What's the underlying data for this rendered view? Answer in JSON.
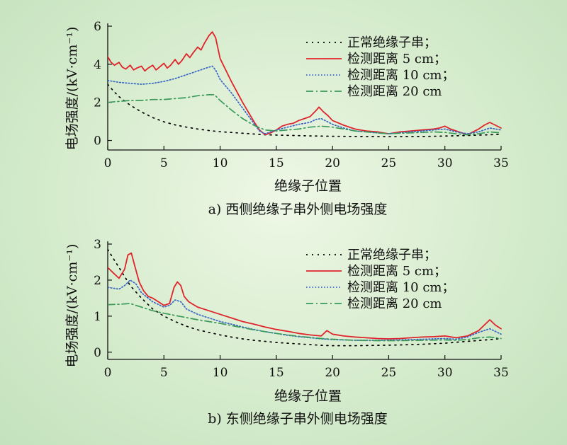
{
  "chart_data": [
    {
      "type": "line",
      "caption": "a) 西侧绝缘子串外侧电场强度",
      "xlabel": "绝缘子位置",
      "ylabel": "电场强度/(kV·cm⁻¹)",
      "xlim": [
        0,
        35
      ],
      "ylim": [
        -0.5,
        6
      ],
      "xticks": [
        0,
        5,
        10,
        15,
        20,
        25,
        30,
        35
      ],
      "yticks": [
        0,
        2,
        4,
        6
      ],
      "grid": false,
      "legend_position": "top-right",
      "series": [
        {
          "name": "正常绝缘子串；",
          "style": "dotted-sparse",
          "color": "#000000",
          "x": [
            0,
            0.5,
            1,
            2,
            3,
            4,
            5,
            6,
            7,
            8,
            9,
            10,
            11,
            12,
            13,
            14,
            16,
            18,
            20,
            22,
            24,
            26,
            28,
            30,
            32,
            34,
            35
          ],
          "y": [
            2.95,
            2.6,
            2.3,
            1.85,
            1.5,
            1.2,
            0.98,
            0.82,
            0.7,
            0.6,
            0.52,
            0.46,
            0.42,
            0.38,
            0.34,
            0.3,
            0.27,
            0.24,
            0.22,
            0.21,
            0.2,
            0.2,
            0.21,
            0.23,
            0.26,
            0.3,
            0.33
          ]
        },
        {
          "name": "检测距离 5 cm；",
          "style": "solid",
          "color": "#e0242c",
          "x": [
            0,
            0.3,
            0.6,
            1,
            1.3,
            1.6,
            2,
            2.3,
            2.6,
            3,
            3.3,
            3.6,
            4,
            4.3,
            4.6,
            5,
            5.3,
            5.6,
            6,
            6.3,
            6.6,
            7,
            7.3,
            7.6,
            8,
            8.3,
            8.6,
            9,
            9.3,
            9.6,
            10,
            11,
            12,
            13,
            13.5,
            14,
            14.5,
            15,
            15.5,
            16,
            16.5,
            17,
            17.5,
            18,
            18.5,
            18.8,
            19.2,
            19.6,
            20,
            21,
            22,
            23,
            24,
            25,
            26,
            27,
            28,
            29,
            29.5,
            30,
            30.5,
            31,
            31.5,
            32,
            32.5,
            33,
            33.5,
            34,
            34.5,
            35
          ],
          "y": [
            4.4,
            4.1,
            3.95,
            4.1,
            3.85,
            3.75,
            3.95,
            3.7,
            3.8,
            3.9,
            3.65,
            3.8,
            3.95,
            3.7,
            3.85,
            4.05,
            3.8,
            3.95,
            4.25,
            4.0,
            4.2,
            4.55,
            4.35,
            4.6,
            4.9,
            4.75,
            5.1,
            5.5,
            5.7,
            5.4,
            4.3,
            3.1,
            2.0,
            1.0,
            0.55,
            0.3,
            0.4,
            0.55,
            0.75,
            0.85,
            0.9,
            1.05,
            1.15,
            1.25,
            1.55,
            1.75,
            1.5,
            1.3,
            1.05,
            0.8,
            0.6,
            0.5,
            0.45,
            0.35,
            0.45,
            0.5,
            0.55,
            0.6,
            0.65,
            0.75,
            0.6,
            0.5,
            0.4,
            0.3,
            0.45,
            0.6,
            0.8,
            0.95,
            0.8,
            0.65
          ]
        },
        {
          "name": "检测距离 10 cm；",
          "style": "dotted",
          "color": "#3a66c4",
          "x": [
            0,
            0.5,
            1,
            2,
            3,
            4,
            5,
            6,
            7,
            8,
            8.5,
            9,
            9.3,
            9.6,
            10,
            11,
            12,
            13,
            13.5,
            14,
            15,
            16,
            17,
            18,
            18.5,
            19,
            20,
            21,
            22,
            23,
            24,
            25,
            26,
            27,
            28,
            29,
            30,
            31,
            32,
            33,
            34,
            35
          ],
          "y": [
            3.15,
            3.1,
            3.05,
            3.0,
            2.95,
            3.0,
            3.1,
            3.25,
            3.45,
            3.65,
            3.75,
            3.85,
            3.9,
            3.7,
            3.2,
            2.5,
            1.7,
            0.9,
            0.5,
            0.35,
            0.55,
            0.7,
            0.85,
            0.95,
            1.1,
            1.15,
            0.85,
            0.65,
            0.5,
            0.45,
            0.4,
            0.35,
            0.4,
            0.45,
            0.5,
            0.55,
            0.6,
            0.45,
            0.35,
            0.45,
            0.65,
            0.55
          ]
        },
        {
          "name": "检测距离 20 cm",
          "style": "dashdot",
          "color": "#3a9a5a",
          "x": [
            0,
            1,
            2,
            3,
            4,
            5,
            6,
            7,
            8,
            9,
            9.5,
            10,
            11,
            12,
            13,
            14,
            15,
            16,
            17,
            18,
            19,
            20,
            21,
            22,
            23,
            24,
            25,
            26,
            27,
            28,
            29,
            30,
            31,
            32,
            33,
            34,
            35
          ],
          "y": [
            2.0,
            2.05,
            2.1,
            2.1,
            2.15,
            2.15,
            2.2,
            2.25,
            2.35,
            2.4,
            2.4,
            2.1,
            1.6,
            1.15,
            0.8,
            0.55,
            0.5,
            0.55,
            0.6,
            0.7,
            0.75,
            0.7,
            0.6,
            0.5,
            0.45,
            0.4,
            0.35,
            0.38,
            0.4,
            0.42,
            0.45,
            0.42,
            0.35,
            0.3,
            0.35,
            0.45,
            0.4
          ]
        }
      ]
    },
    {
      "type": "line",
      "caption": "b) 东侧绝缘子串外侧电场强度",
      "xlabel": "绝缘子位置",
      "ylabel": "电场强度/(kV·cm⁻¹)",
      "xlim": [
        0,
        35
      ],
      "ylim": [
        -0.2,
        3
      ],
      "xticks": [
        0,
        5,
        10,
        15,
        20,
        25,
        30,
        35
      ],
      "yticks": [
        0,
        1,
        2,
        3
      ],
      "grid": false,
      "legend_position": "top-right",
      "series": [
        {
          "name": "正常绝缘子串；",
          "style": "dotted-sparse",
          "color": "#000000",
          "x": [
            0,
            0.5,
            1,
            1.5,
            2,
            3,
            4,
            5,
            6,
            7,
            8,
            9,
            10,
            11,
            12,
            13,
            14,
            15,
            16,
            17,
            18,
            19,
            20,
            22,
            24,
            26,
            28,
            30,
            32,
            34,
            35
          ],
          "y": [
            2.85,
            2.6,
            2.35,
            2.1,
            1.85,
            1.5,
            1.2,
            1.0,
            0.85,
            0.72,
            0.62,
            0.55,
            0.48,
            0.42,
            0.37,
            0.33,
            0.3,
            0.27,
            0.25,
            0.23,
            0.21,
            0.19,
            0.18,
            0.18,
            0.19,
            0.2,
            0.22,
            0.25,
            0.3,
            0.35,
            0.38
          ]
        },
        {
          "name": "检测距离 5 cm；",
          "style": "solid",
          "color": "#e0242c",
          "x": [
            0,
            0.5,
            1,
            1.5,
            1.8,
            2.1,
            2.4,
            2.8,
            3.2,
            3.6,
            4,
            4.5,
            5,
            5.5,
            5.9,
            6.2,
            6.5,
            6.8,
            7.2,
            8,
            9,
            10,
            11,
            12,
            13,
            14,
            15,
            16,
            17,
            18,
            19,
            19.5,
            20,
            21,
            22,
            23,
            24,
            25,
            26,
            27,
            28,
            29,
            30,
            31,
            32,
            33,
            33.5,
            34,
            34.5,
            35
          ],
          "y": [
            2.35,
            2.2,
            2.05,
            2.3,
            2.7,
            2.75,
            2.4,
            1.95,
            1.7,
            1.55,
            1.5,
            1.4,
            1.3,
            1.35,
            1.8,
            1.95,
            1.85,
            1.55,
            1.4,
            1.25,
            1.15,
            1.05,
            0.95,
            0.85,
            0.78,
            0.7,
            0.63,
            0.58,
            0.52,
            0.48,
            0.45,
            0.6,
            0.5,
            0.45,
            0.42,
            0.4,
            0.38,
            0.37,
            0.38,
            0.4,
            0.42,
            0.43,
            0.45,
            0.4,
            0.45,
            0.6,
            0.75,
            0.9,
            0.75,
            0.65
          ]
        },
        {
          "name": "检测距离 10 cm；",
          "style": "dotted",
          "color": "#3a66c4",
          "x": [
            0,
            1,
            1.5,
            2,
            2.5,
            3,
            4,
            5,
            5.5,
            6,
            6.5,
            7,
            8,
            9,
            10,
            11,
            12,
            13,
            14,
            15,
            16,
            17,
            18,
            19,
            20,
            22,
            24,
            26,
            28,
            30,
            31,
            32,
            33,
            34,
            35
          ],
          "y": [
            1.8,
            1.75,
            1.85,
            2.0,
            1.9,
            1.65,
            1.4,
            1.25,
            1.3,
            1.45,
            1.4,
            1.2,
            1.05,
            0.95,
            0.85,
            0.78,
            0.7,
            0.63,
            0.57,
            0.52,
            0.47,
            0.43,
            0.4,
            0.37,
            0.35,
            0.33,
            0.33,
            0.34,
            0.36,
            0.38,
            0.36,
            0.42,
            0.55,
            0.65,
            0.5
          ]
        },
        {
          "name": "检测距离 20 cm",
          "style": "dashdot",
          "color": "#3a9a5a",
          "x": [
            0,
            1,
            2,
            3,
            4,
            5,
            6,
            7,
            8,
            9,
            10,
            11,
            12,
            13,
            14,
            15,
            16,
            17,
            18,
            19,
            20,
            22,
            24,
            26,
            28,
            30,
            31,
            32,
            33,
            34,
            35
          ],
          "y": [
            1.32,
            1.33,
            1.35,
            1.25,
            1.15,
            1.08,
            1.02,
            0.96,
            0.9,
            0.85,
            0.8,
            0.74,
            0.68,
            0.62,
            0.57,
            0.52,
            0.48,
            0.44,
            0.41,
            0.38,
            0.36,
            0.33,
            0.32,
            0.32,
            0.33,
            0.34,
            0.33,
            0.35,
            0.4,
            0.42,
            0.38
          ]
        }
      ]
    }
  ]
}
